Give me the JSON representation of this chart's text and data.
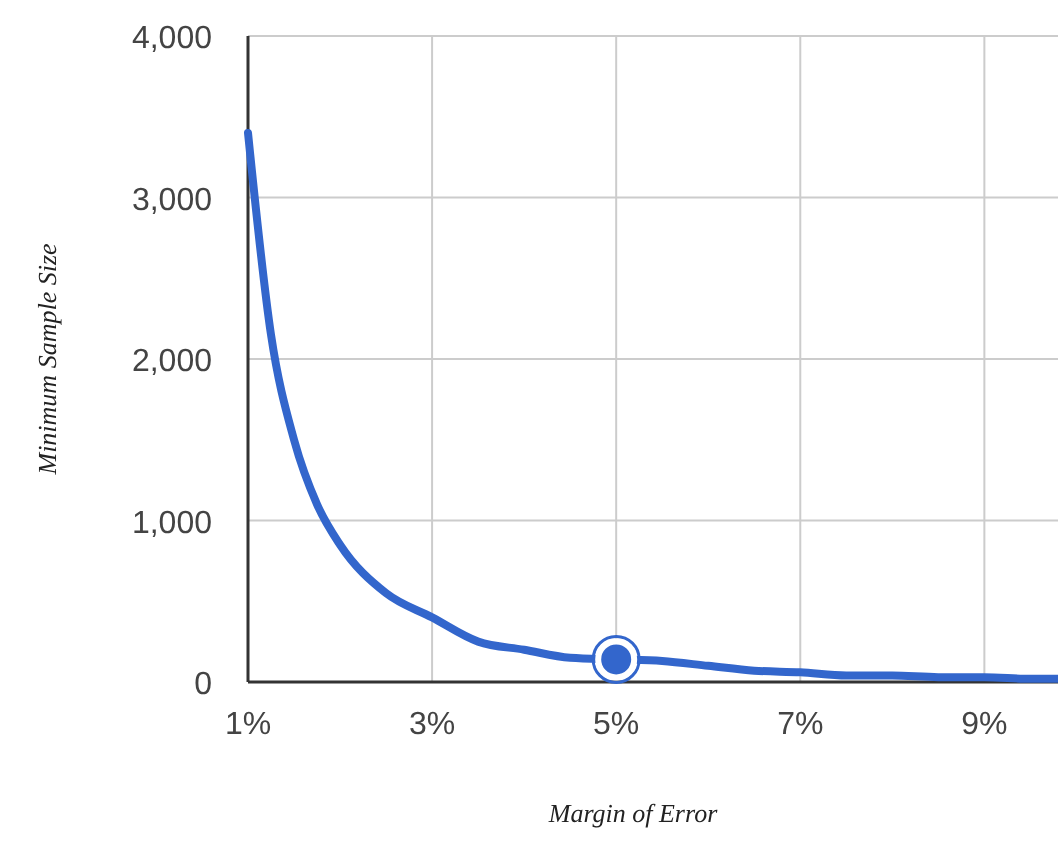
{
  "chart_data": {
    "type": "line",
    "xlabel": "Margin of Error",
    "ylabel": "Minimum Sample Size",
    "xlim": [
      1,
      9.8
    ],
    "xticks": [
      {
        "value": 1,
        "label": "1%"
      },
      {
        "value": 3,
        "label": "3%"
      },
      {
        "value": 5,
        "label": "5%"
      },
      {
        "value": 7,
        "label": "7%"
      },
      {
        "value": 9,
        "label": "9%"
      }
    ],
    "ylim": [
      0,
      4000
    ],
    "yticks": [
      {
        "value": 0,
        "label": "0"
      },
      {
        "value": 1000,
        "label": "1,000"
      },
      {
        "value": 2000,
        "label": "2,000"
      },
      {
        "value": 3000,
        "label": "3,000"
      },
      {
        "value": 4000,
        "label": "4,000"
      }
    ],
    "grid": true,
    "series": [
      {
        "color": "#3366cc",
        "marker": "none",
        "x": [
          1,
          1.25,
          1.5,
          1.75,
          2,
          2.5,
          3,
          3.5,
          4,
          4.5,
          5,
          5.5,
          6,
          6.5,
          7,
          7.5,
          8,
          8.5,
          9,
          9.5,
          9.8
        ],
        "values": [
          3400,
          2150,
          1500,
          1100,
          850,
          550,
          400,
          250,
          200,
          150,
          140,
          130,
          100,
          70,
          60,
          40,
          40,
          30,
          30,
          20,
          20
        ]
      },
      {
        "type": "scatter",
        "color": "#3366cc",
        "marker": "circle",
        "x": [
          5
        ],
        "values": [
          140
        ]
      }
    ]
  }
}
